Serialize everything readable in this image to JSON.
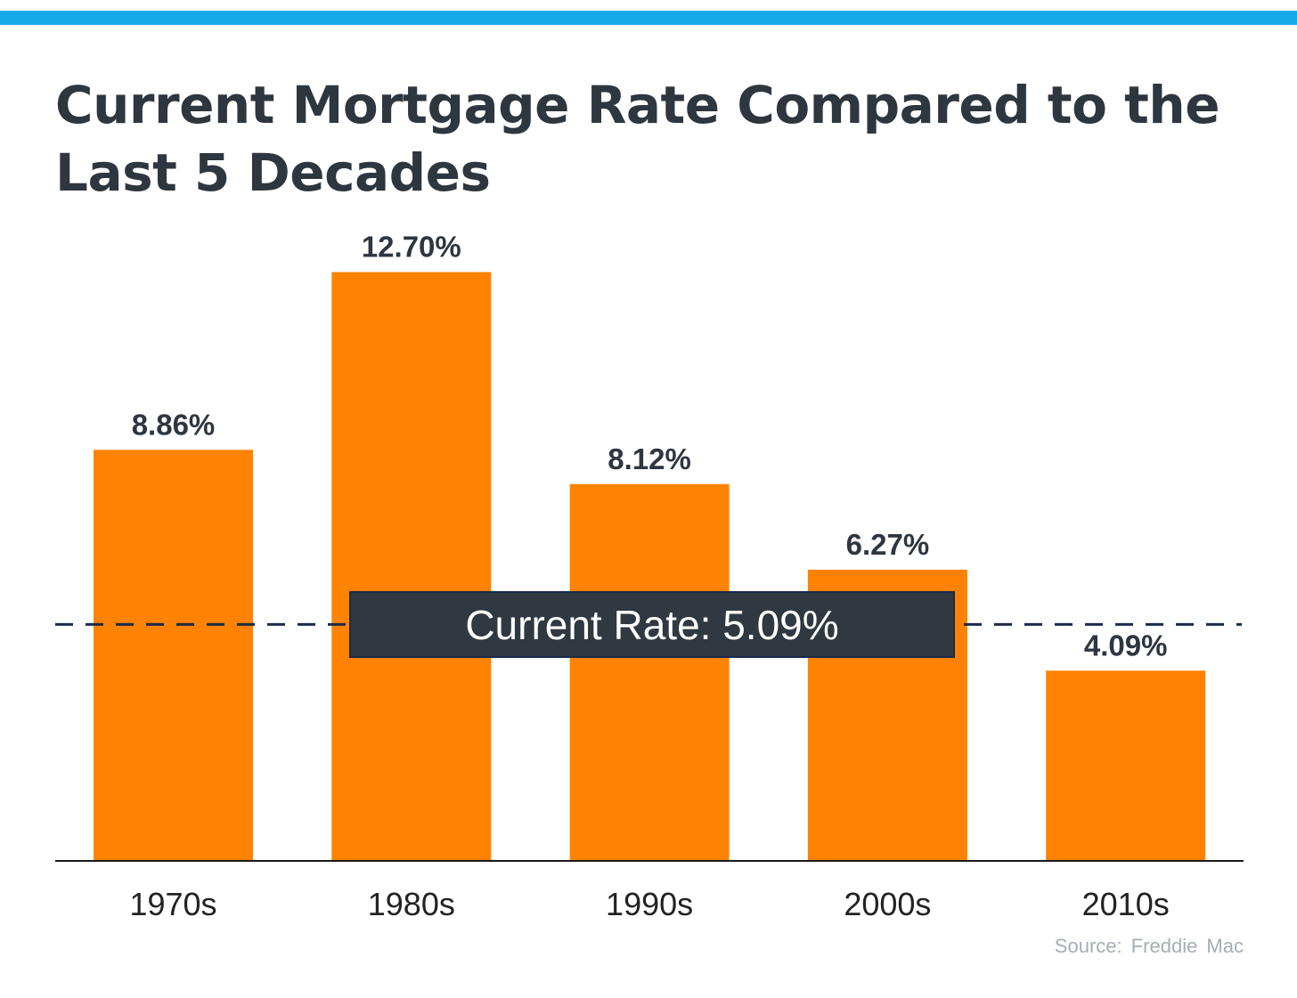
{
  "colors": {
    "top_bar": "#18a9e9",
    "bar": "#ff8200",
    "title": "#2e3640",
    "reference_line": "#1b2a4a",
    "reference_box": "#303841",
    "axis": "#1a1a1a"
  },
  "chart_data": {
    "type": "bar",
    "title": "Current Mortgage Rate Compared to the Last 5 Decades",
    "categories": [
      "1970s",
      "1980s",
      "1990s",
      "2000s",
      "2010s"
    ],
    "values": [
      8.86,
      12.7,
      8.12,
      6.27,
      4.09
    ],
    "value_labels": [
      "8.86%",
      "12.70%",
      "8.12%",
      "6.27%",
      "4.09%"
    ],
    "xlabel": "",
    "ylabel": "",
    "ylim": [
      0,
      12.7
    ],
    "grid": false,
    "legend": "none",
    "reference_line": {
      "value": 5.09,
      "label": "Current Rate: 5.09%",
      "style": "dashed"
    },
    "source": "Source: Freddie Mac"
  }
}
